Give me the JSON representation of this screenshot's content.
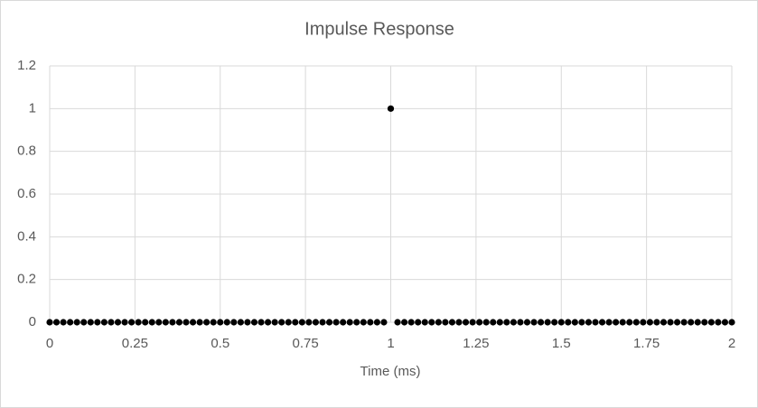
{
  "chart_data": {
    "type": "scatter",
    "title": "Impulse Response",
    "x_label": "Time (ms)",
    "color": "#000000",
    "grid": true,
    "x": [
      0,
      0.02,
      0.04,
      0.06,
      0.08,
      0.1,
      0.12,
      0.14,
      0.16,
      0.18,
      0.2,
      0.22,
      0.24,
      0.26,
      0.28,
      0.3,
      0.32,
      0.34,
      0.36,
      0.38,
      0.4,
      0.42,
      0.44,
      0.46,
      0.48,
      0.5,
      0.52,
      0.54,
      0.56,
      0.58,
      0.6,
      0.62,
      0.64,
      0.66,
      0.68,
      0.7,
      0.72,
      0.74,
      0.76,
      0.78,
      0.8,
      0.82,
      0.84,
      0.86,
      0.88,
      0.9,
      0.92,
      0.94,
      0.96,
      0.98,
      1,
      1.02,
      1.04,
      1.06,
      1.08,
      1.1,
      1.12,
      1.14,
      1.16,
      1.18,
      1.2,
      1.22,
      1.24,
      1.26,
      1.28,
      1.3,
      1.32,
      1.34,
      1.36,
      1.38,
      1.4,
      1.42,
      1.44,
      1.46,
      1.48,
      1.5,
      1.52,
      1.54,
      1.56,
      1.58,
      1.6,
      1.62,
      1.64,
      1.66,
      1.68,
      1.7,
      1.72,
      1.74,
      1.76,
      1.78,
      1.8,
      1.82,
      1.84,
      1.86,
      1.88,
      1.9,
      1.92,
      1.94,
      1.96,
      1.98,
      2
    ],
    "values": [
      0,
      0,
      0,
      0,
      0,
      0,
      0,
      0,
      0,
      0,
      0,
      0,
      0,
      0,
      0,
      0,
      0,
      0,
      0,
      0,
      0,
      0,
      0,
      0,
      0,
      0,
      0,
      0,
      0,
      0,
      0,
      0,
      0,
      0,
      0,
      0,
      0,
      0,
      0,
      0,
      0,
      0,
      0,
      0,
      0,
      0,
      0,
      0,
      0,
      0,
      1,
      0,
      0,
      0,
      0,
      0,
      0,
      0,
      0,
      0,
      0,
      0,
      0,
      0,
      0,
      0,
      0,
      0,
      0,
      0,
      0,
      0,
      0,
      0,
      0,
      0,
      0,
      0,
      0,
      0,
      0,
      0,
      0,
      0,
      0,
      0,
      0,
      0,
      0,
      0,
      0,
      0,
      0,
      0,
      0,
      0,
      0,
      0,
      0,
      0,
      0
    ],
    "xlim": [
      0,
      2
    ],
    "xticks": [
      0,
      0.25,
      0.5,
      0.75,
      1,
      1.25,
      1.5,
      1.75,
      2
    ],
    "ylim": [
      0,
      1.2
    ],
    "yticks": [
      0,
      0.2,
      0.4,
      0.6,
      0.8,
      1,
      1.2
    ]
  }
}
